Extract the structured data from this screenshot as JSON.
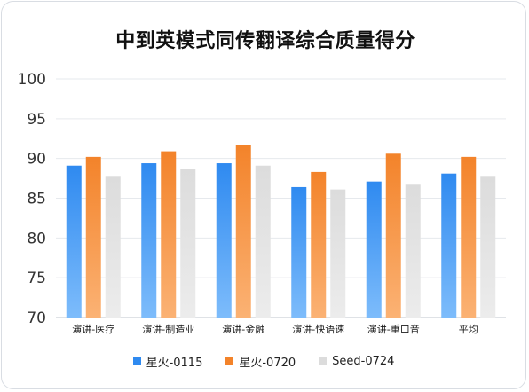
{
  "chart_data": {
    "type": "bar",
    "title": "中到英模式同传翻译综合质量得分",
    "xlabel": "",
    "ylabel": "",
    "ylim": [
      70,
      100
    ],
    "yticks": [
      70,
      75,
      80,
      85,
      90,
      95,
      100
    ],
    "categories": [
      "演讲-医疗",
      "演讲-制造业",
      "演讲-金融",
      "演讲-快语速",
      "演讲-重口音",
      "平均"
    ],
    "series": [
      {
        "name": "星火-0115",
        "color": "#2f8af0",
        "values": [
          89.1,
          89.4,
          89.4,
          86.4,
          87.1,
          88.1
        ]
      },
      {
        "name": "星火-0720",
        "color": "#f3832a",
        "values": [
          90.2,
          90.9,
          91.7,
          88.3,
          90.6,
          90.2
        ]
      },
      {
        "name": "Seed-0724",
        "color": "#dcdcdc",
        "values": [
          87.7,
          88.7,
          89.1,
          86.1,
          86.7,
          87.7
        ]
      }
    ],
    "grid": true,
    "legend": "bottom"
  }
}
